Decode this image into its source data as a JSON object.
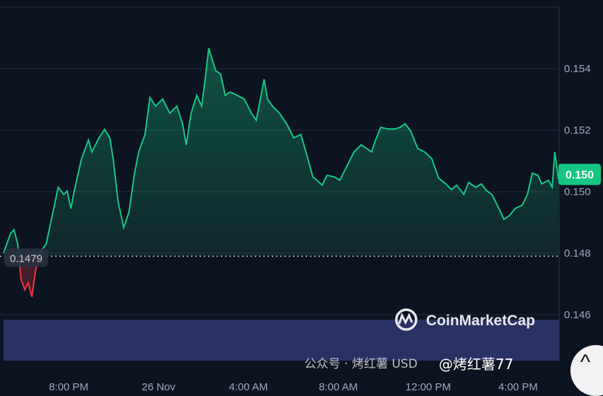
{
  "chart_data": {
    "type": "area",
    "title": "",
    "xlabel": "",
    "ylabel": "",
    "ylim": [
      0.1455,
      0.1562
    ],
    "y_ticks": [
      "0.154",
      "0.152",
      "0.150",
      "0.148",
      "0.146"
    ],
    "y_tick_values": [
      0.154,
      0.152,
      0.15,
      0.148,
      0.146
    ],
    "x_ticks": [
      "8:00 PM",
      "26 Nov",
      "4:00 AM",
      "8:00 AM",
      "12:00 PM",
      "4:00 PM"
    ],
    "x_tick_times": [
      "25 Nov 20:00",
      "26 Nov 00:00",
      "26 Nov 04:00",
      "26 Nov 08:00",
      "26 Nov 12:00",
      "26 Nov 16:00"
    ],
    "grid": true,
    "baseline": {
      "value": 0.1479,
      "label": "0.1479"
    },
    "current_price": {
      "value": 0.1504,
      "label": "0.150"
    },
    "colors": {
      "up": "#16c784",
      "down": "#ea3943",
      "background": "#0d1421",
      "volume": "#2a3163",
      "grid": "#222b3d"
    },
    "series": [
      {
        "x": [
          "25 Nov 17:06",
          "25 Nov 17:25",
          "25 Nov 17:34",
          "25 Nov 17:44",
          "25 Nov 17:53",
          "25 Nov 18:03",
          "25 Nov 18:12",
          "25 Nov 18:22",
          "25 Nov 18:31",
          "25 Nov 18:41",
          "25 Nov 19:00",
          "25 Nov 19:18",
          "25 Nov 19:32",
          "25 Nov 19:47",
          "25 Nov 19:56",
          "25 Nov 20:06",
          "25 Nov 20:15",
          "25 Nov 20:34",
          "25 Nov 20:53",
          "25 Nov 21:02",
          "25 Nov 21:21",
          "25 Nov 21:36",
          "25 Nov 21:50",
          "25 Nov 21:59",
          "25 Nov 22:12",
          "25 Nov 22:27",
          "25 Nov 22:41",
          "25 Nov 22:56",
          "25 Nov 23:07",
          "25 Nov 23:24",
          "25 Nov 23:37",
          "25 Nov 23:52",
          "26 Nov 00:11",
          "26 Nov 00:30",
          "26 Nov 00:49",
          "26 Nov 01:04",
          "26 Nov 01:14",
          "26 Nov 01:27",
          "26 Nov 01:42",
          "26 Nov 01:55",
          "26 Nov 02:05",
          "26 Nov 02:14",
          "26 Nov 02:24",
          "26 Nov 02:33",
          "26 Nov 02:46",
          "26 Nov 02:58",
          "26 Nov 03:11",
          "26 Nov 03:30",
          "26 Nov 03:49",
          "26 Nov 04:08",
          "26 Nov 04:21",
          "26 Nov 04:32",
          "26 Nov 04:42",
          "26 Nov 04:51",
          "26 Nov 05:04",
          "26 Nov 05:23",
          "26 Nov 05:42",
          "26 Nov 06:01",
          "26 Nov 06:20",
          "26 Nov 06:39",
          "26 Nov 06:52",
          "26 Nov 07:03",
          "26 Nov 07:17",
          "26 Nov 07:30",
          "26 Nov 07:49",
          "26 Nov 08:04",
          "26 Nov 08:23",
          "26 Nov 08:42",
          "26 Nov 09:01",
          "26 Nov 09:16",
          "26 Nov 09:29",
          "26 Nov 09:38",
          "26 Nov 09:53",
          "26 Nov 10:12",
          "26 Nov 10:31",
          "26 Nov 10:45",
          "26 Nov 10:58",
          "26 Nov 11:13",
          "26 Nov 11:32",
          "26 Nov 11:51",
          "26 Nov 12:10",
          "26 Nov 12:28",
          "26 Nov 12:47",
          "26 Nov 13:02",
          "26 Nov 13:16",
          "26 Nov 13:35",
          "26 Nov 13:48",
          "26 Nov 14:07",
          "26 Nov 14:22",
          "26 Nov 14:37",
          "26 Nov 14:50",
          "26 Nov 15:09",
          "26 Nov 15:22",
          "26 Nov 15:37",
          "26 Nov 15:52",
          "26 Nov 16:11",
          "26 Nov 16:25",
          "26 Nov 16:38",
          "26 Nov 16:53",
          "26 Nov 17:03",
          "26 Nov 17:21",
          "26 Nov 17:31",
          "26 Nov 17:38",
          "26 Nov 17:48"
        ],
        "values": [
          0.148,
          0.14864,
          0.14876,
          0.1483,
          0.14715,
          0.14681,
          0.14704,
          0.14658,
          0.14738,
          0.14796,
          0.1483,
          0.14933,
          0.15014,
          0.14991,
          0.15002,
          0.14945,
          0.15002,
          0.15105,
          0.15168,
          0.15129,
          0.15175,
          0.15202,
          0.15175,
          0.15106,
          0.14968,
          0.14883,
          0.14933,
          0.1506,
          0.15129,
          0.15186,
          0.15306,
          0.15278,
          0.15301,
          0.15255,
          0.15278,
          0.15221,
          0.15152,
          0.15255,
          0.15313,
          0.15278,
          0.1537,
          0.15466,
          0.15427,
          0.15393,
          0.15382,
          0.15313,
          0.15324,
          0.15313,
          0.15301,
          0.15255,
          0.15232,
          0.15301,
          0.15365,
          0.15301,
          0.15278,
          0.15255,
          0.15221,
          0.15175,
          0.15186,
          0.15106,
          0.15048,
          0.15037,
          0.15021,
          0.15053,
          0.15048,
          0.15037,
          0.15083,
          0.15129,
          0.15152,
          0.1514,
          0.15129,
          0.15163,
          0.15209,
          0.15204,
          0.15204,
          0.15209,
          0.15221,
          0.15198,
          0.1514,
          0.15129,
          0.15106,
          0.15044,
          0.15025,
          0.15007,
          0.15021,
          0.14991,
          0.1503,
          0.15014,
          0.15025,
          0.15002,
          0.14991,
          0.14945,
          0.1491,
          0.14922,
          0.14945,
          0.14956,
          0.14991,
          0.1506,
          0.15053,
          0.15025,
          0.15037,
          0.15014,
          0.15129,
          0.1504
        ]
      }
    ]
  },
  "brand": {
    "name": "CoinMarketCap"
  },
  "watermarks": {
    "wechat": "公众号 · 烤红薯 USD",
    "handle": "@烤红薯77"
  },
  "scroll_top_icon": "chevron-up-icon"
}
